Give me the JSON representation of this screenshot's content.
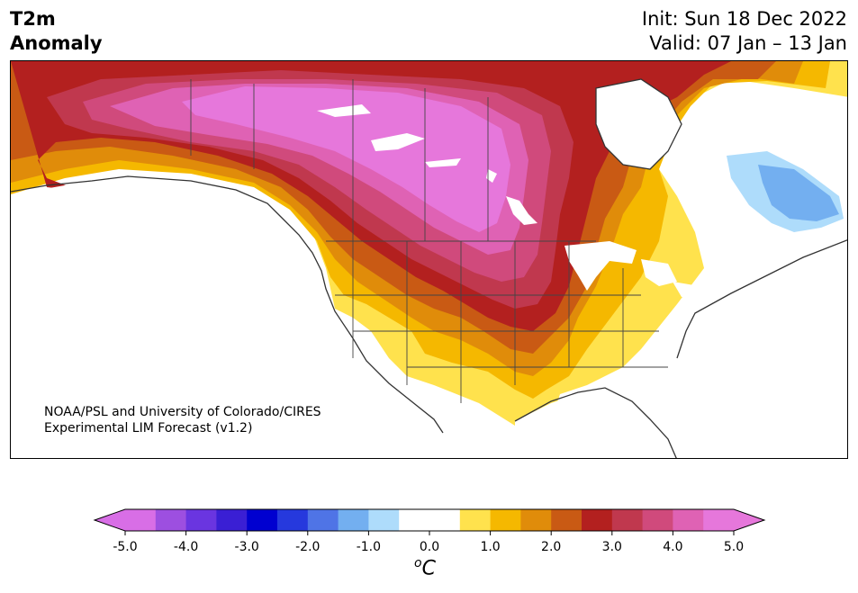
{
  "header": {
    "title_line1": "T2m",
    "title_line2": "Anomaly",
    "init": "Init: Sun 18 Dec 2022",
    "valid": "Valid: 07 Jan – 13 Jan"
  },
  "credit": {
    "line1": "NOAA/PSL and University of Colorado/CIRES",
    "line2": "Experimental LIM Forecast (v1.2)"
  },
  "colorbar": {
    "min": -5.0,
    "max": 5.0,
    "step": 0.5,
    "extend": "both",
    "colors": [
      "#d86ee6",
      "#9d4fe0",
      "#6a35e0",
      "#3a1fd4",
      "#0000d0",
      "#2639dd",
      "#4f74e6",
      "#73aff0",
      "#aedcfb",
      "#ffffff",
      "#ffffff",
      "#ffe24d",
      "#f5b800",
      "#e08c0a",
      "#c95a14",
      "#b3201f",
      "#c0384e",
      "#d04a7c",
      "#df62b4",
      "#e677db"
    ],
    "ticks": [
      "-5.0",
      "-4.0",
      "-3.0",
      "-2.0",
      "-1.0",
      "0.0",
      "1.0",
      "2.0",
      "3.0",
      "4.0",
      "5.0"
    ],
    "unit_super": "o",
    "unit": "C"
  },
  "map": {
    "region": "North America",
    "field": "2-meter temperature anomaly",
    "features": [
      "coastlines",
      "country borders",
      "US state and Canadian province borders"
    ],
    "max_anomaly_area": "western and central Canada",
    "cold_anomaly_area": "Labrador / Quebec"
  }
}
